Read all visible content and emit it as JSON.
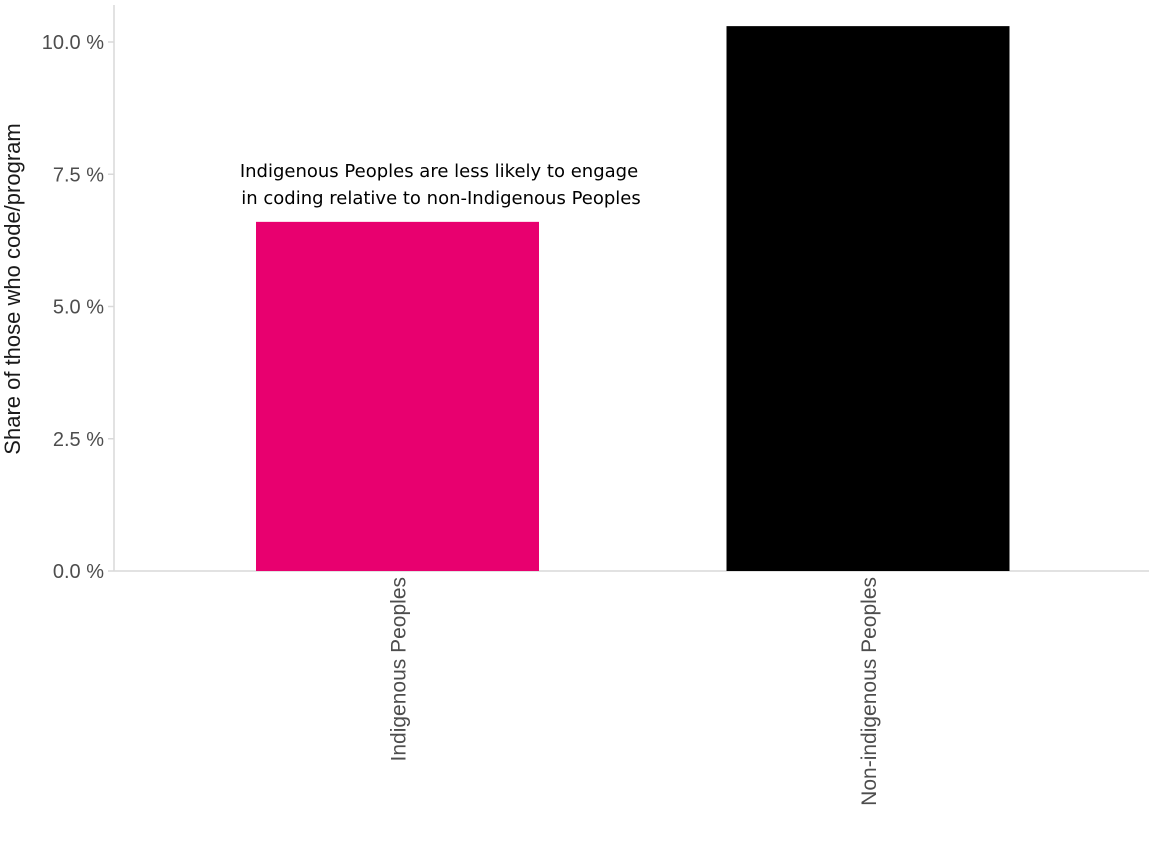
{
  "chart_data": {
    "type": "bar",
    "categories": [
      "Indigenous Peoples",
      "Non-indigenous Peoples"
    ],
    "values": [
      6.6,
      10.3
    ],
    "colors": [
      "#e8006f",
      "#000000"
    ],
    "title": "",
    "xlabel": "",
    "ylabel": "Share of those who code/program",
    "ylim": [
      0,
      10.3
    ],
    "yticks": [
      0,
      2.5,
      5.0,
      7.5,
      10.0
    ],
    "ytick_labels": [
      "0.0 %",
      "2.5 %",
      "5.0 %",
      "7.5 %",
      "10.0 %"
    ],
    "annotation": {
      "lines": [
        "Indigenous Peoples are less likely to engage",
        "in coding relative to non-Indigenous Peoples"
      ],
      "anchor_category": "Indigenous Peoples"
    },
    "grid": false,
    "axis_color": "#d9d9d9",
    "legend": "none"
  }
}
